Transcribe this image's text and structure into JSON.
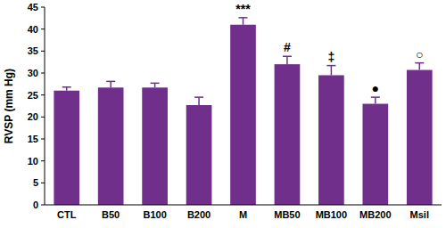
{
  "chart_data": {
    "type": "bar",
    "y_label": "RVSP (mm Hg)",
    "categories": [
      "CTL",
      "B50",
      "B100",
      "B200",
      "M",
      "MB50",
      "MB100",
      "MB200",
      "Msil"
    ],
    "values": [
      26,
      26.7,
      26.7,
      22.7,
      41,
      32,
      29.5,
      23,
      30.7
    ],
    "errors": [
      0.8,
      1.4,
      1.0,
      1.8,
      1.6,
      1.8,
      2.2,
      1.5,
      1.6
    ],
    "annotations": [
      null,
      null,
      null,
      null,
      "***",
      "#",
      "‡",
      "●",
      "○"
    ],
    "color": "#702f8a",
    "ylim": [
      0,
      45
    ],
    "yticks": [
      0,
      5,
      10,
      15,
      20,
      25,
      30,
      35,
      40,
      45
    ],
    "grid": false
  }
}
